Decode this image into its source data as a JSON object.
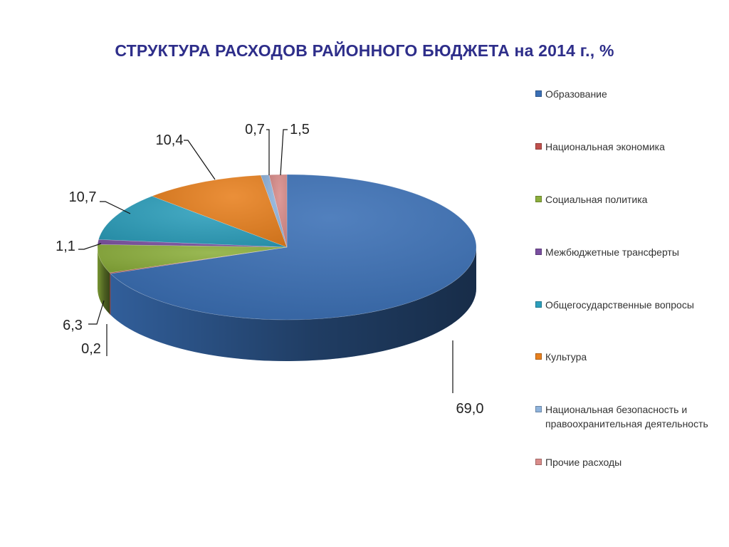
{
  "chart_data": {
    "type": "pie",
    "title": "СТРУКТУРА РАСХОДОВ РАЙОННОГО БЮДЖЕТА  на 2014 г., %",
    "legend_position": "right",
    "slices": [
      {
        "name": "Образование",
        "value": 69.0,
        "label": "69,0",
        "color": "#3a6fb5"
      },
      {
        "name": "Национальная экономика",
        "value": 0.2,
        "label": "0,2",
        "color": "#c0504d"
      },
      {
        "name": "Социальная политика",
        "value": 6.3,
        "label": "6,3",
        "color": "#8caf3c"
      },
      {
        "name": "Межбюджетные трансферты",
        "value": 1.1,
        "label": "1,1",
        "color": "#7a4fa0"
      },
      {
        "name": "Общегосударственные вопросы",
        "value": 10.7,
        "label": "10,7",
        "color": "#2c9fbc"
      },
      {
        "name": "Культура",
        "value": 10.4,
        "label": "10,4",
        "color": "#e8801e"
      },
      {
        "name": "Национальная безопасность и правоохранительная деятельность",
        "value": 0.7,
        "label": "0,7",
        "color": "#8fb3dc"
      },
      {
        "name": "Прочие расходы",
        "value": 1.5,
        "label": "1,5",
        "color": "#d98c8a"
      }
    ]
  }
}
